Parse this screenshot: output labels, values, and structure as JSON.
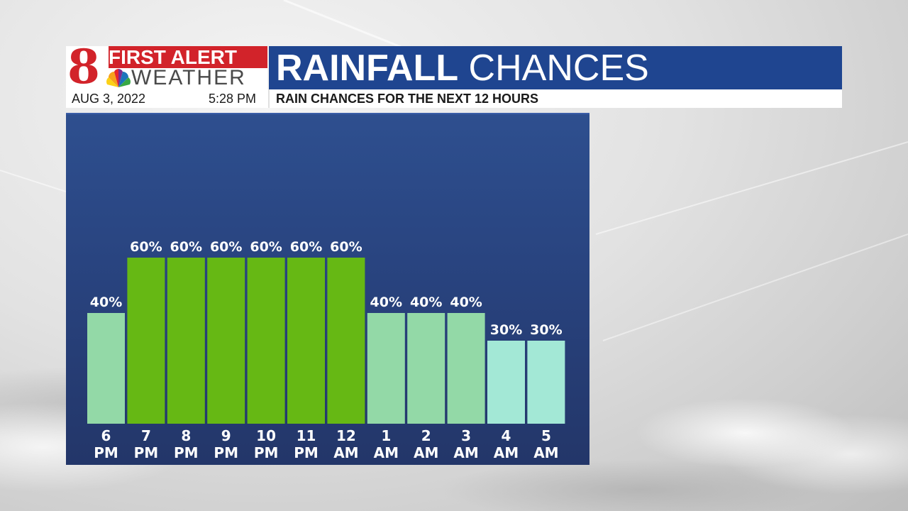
{
  "header": {
    "station_number": "8",
    "brand_line1": "FIRST ALERT",
    "brand_line2": "WEATHER",
    "title_bold": "RAINFALL",
    "title_light": "CHANCES",
    "date": "AUG 3, 2022",
    "time": "5:28 PM",
    "caption": "RAIN CHANCES FOR THE NEXT 12 HOURS"
  },
  "colors": {
    "brand_red": "#d2232a",
    "title_blue": "#1f4590",
    "bar_high": "#66b814",
    "bar_mid": "#93d9a7",
    "bar_low": "#a3e8d6"
  },
  "chart_data": {
    "type": "bar",
    "categories": [
      [
        "6",
        "PM"
      ],
      [
        "7",
        "PM"
      ],
      [
        "8",
        "PM"
      ],
      [
        "9",
        "PM"
      ],
      [
        "10",
        "PM"
      ],
      [
        "11",
        "PM"
      ],
      [
        "12",
        "AM"
      ],
      [
        "1",
        "AM"
      ],
      [
        "2",
        "AM"
      ],
      [
        "3",
        "AM"
      ],
      [
        "4",
        "AM"
      ],
      [
        "5",
        "AM"
      ]
    ],
    "values": [
      40,
      60,
      60,
      60,
      60,
      60,
      60,
      40,
      40,
      40,
      30,
      30
    ],
    "value_labels": [
      "40%",
      "60%",
      "60%",
      "60%",
      "60%",
      "60%",
      "60%",
      "40%",
      "40%",
      "40%",
      "30%",
      "30%"
    ],
    "bar_colors": [
      "#93d9a7",
      "#66b814",
      "#66b814",
      "#66b814",
      "#66b814",
      "#66b814",
      "#66b814",
      "#93d9a7",
      "#93d9a7",
      "#93d9a7",
      "#a3e8d6",
      "#a3e8d6"
    ],
    "unit": "%",
    "ylim": [
      0,
      100
    ],
    "grid": false,
    "title": "",
    "xlabel": "",
    "ylabel": ""
  }
}
